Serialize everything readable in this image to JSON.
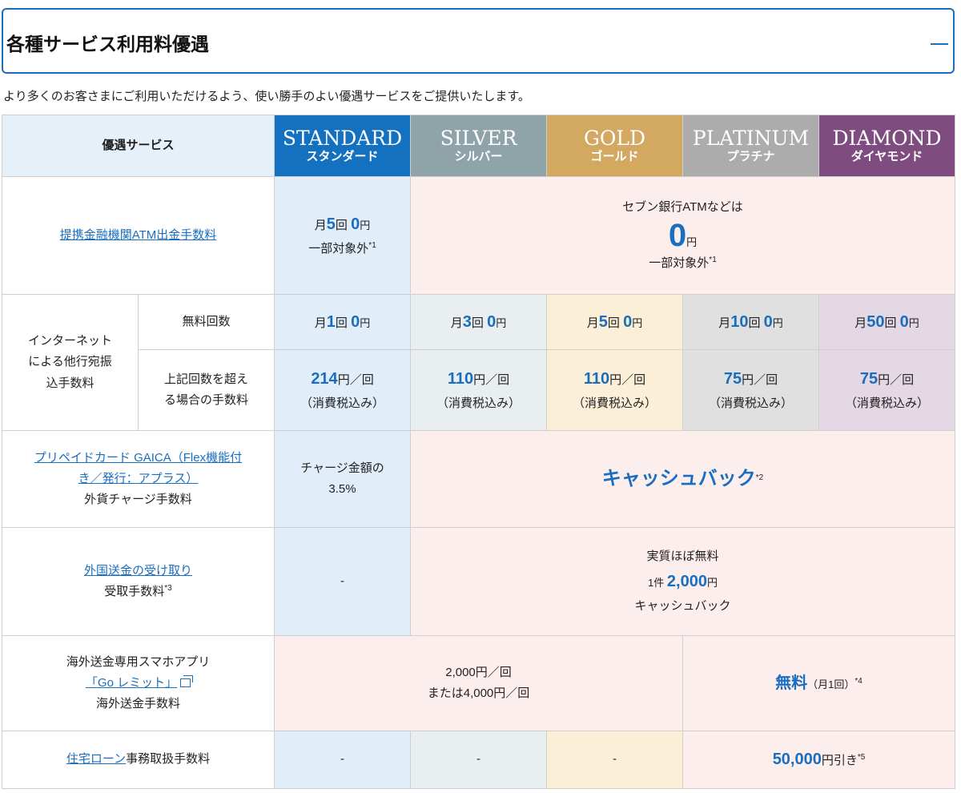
{
  "accordion": {
    "title": "各種サービス利用料優遇",
    "toggle_icon": "minus-icon"
  },
  "intro": "より多くのお客さまにご利用いただけるよう、使い勝手のよい優遇サービスをご提供いたします。",
  "colors": {
    "accent": "#1a6ec0",
    "standard": "#1371bf",
    "silver": "#8fa4a9",
    "gold": "#d3a962",
    "platinum": "#acacac",
    "diamond": "#7f4c80"
  },
  "header": {
    "label": "優遇サービス",
    "tiers": [
      {
        "en": "STANDARD",
        "jp": "スタンダード"
      },
      {
        "en": "SILVER",
        "jp": "シルバー"
      },
      {
        "en": "GOLD",
        "jp": "ゴールド"
      },
      {
        "en": "PLATINUM",
        "jp": "プラチナ"
      },
      {
        "en": "DIAMOND",
        "jp": "ダイヤモンド"
      }
    ]
  },
  "atm": {
    "label": "提携金融機関ATM出金手数料",
    "std": {
      "prefix": "月",
      "count": "5",
      "unit": "回 ",
      "amount": "0",
      "yen": "円",
      "note": "一部対象外",
      "sup": "*1"
    },
    "others": {
      "line1": "セブン銀行ATMなどは",
      "amount": "0",
      "yen": "円",
      "note": "一部対象外",
      "sup": "*1"
    }
  },
  "transfer": {
    "label": "インターネットによる他行宛振込手数料",
    "label_lines": [
      "インターネット",
      "による他行宛振",
      "込手数料"
    ],
    "free_label": "無料回数",
    "over_label_lines": [
      "上記回数を超え",
      "る場合の手数料"
    ],
    "free": [
      {
        "prefix": "月",
        "count": "1",
        "unit": "回 ",
        "amount": "0",
        "yen": "円"
      },
      {
        "prefix": "月",
        "count": "3",
        "unit": "回 ",
        "amount": "0",
        "yen": "円"
      },
      {
        "prefix": "月",
        "count": "5",
        "unit": "回 ",
        "amount": "0",
        "yen": "円"
      },
      {
        "prefix": "月",
        "count": "10",
        "unit": "回 ",
        "amount": "0",
        "yen": "円"
      },
      {
        "prefix": "月",
        "count": "50",
        "unit": "回 ",
        "amount": "0",
        "yen": "円"
      }
    ],
    "over": [
      {
        "amount": "214",
        "unit": "円／回",
        "tax": "（消費税込み）"
      },
      {
        "amount": "110",
        "unit": "円／回",
        "tax": "（消費税込み）"
      },
      {
        "amount": "110",
        "unit": "円／回",
        "tax": "（消費税込み）"
      },
      {
        "amount": "75",
        "unit": "円／回",
        "tax": "（消費税込み）"
      },
      {
        "amount": "75",
        "unit": "円／回",
        "tax": "（消費税込み）"
      }
    ]
  },
  "gaica": {
    "link_line1": "プリペイドカード GAICA（Flex機能付",
    "link_line2": "き／発行：アプラス）",
    "label": "外貨チャージ手数料",
    "std_line1": "チャージ金額の",
    "std_line2": "3.5%",
    "others": "キャッシュバック",
    "others_sup": "*2"
  },
  "remit_recv": {
    "link": "外国送金の受け取り",
    "label": "受取手数料",
    "sup": "*3",
    "std": "-",
    "line1": "実質ほぼ無料",
    "prefix": "1件 ",
    "amount": "2,000",
    "yen": "円",
    "line3": "キャッシュバック"
  },
  "golimit": {
    "line1": "海外送金専用スマホアプリ",
    "link": "「Go レミット」",
    "line3": "海外送金手数料",
    "lower_line1": "2,000円／回",
    "lower_line2": "または4,000円／回",
    "upper_main": "無料",
    "upper_note": "（月1回）",
    "upper_sup": "*4"
  },
  "housing": {
    "link": "住宅ローン",
    "label": "事務取扱手数料",
    "std": "-",
    "silver": "-",
    "gold": "-",
    "amount": "50,000",
    "suffix": "円引き",
    "sup": "*5"
  }
}
